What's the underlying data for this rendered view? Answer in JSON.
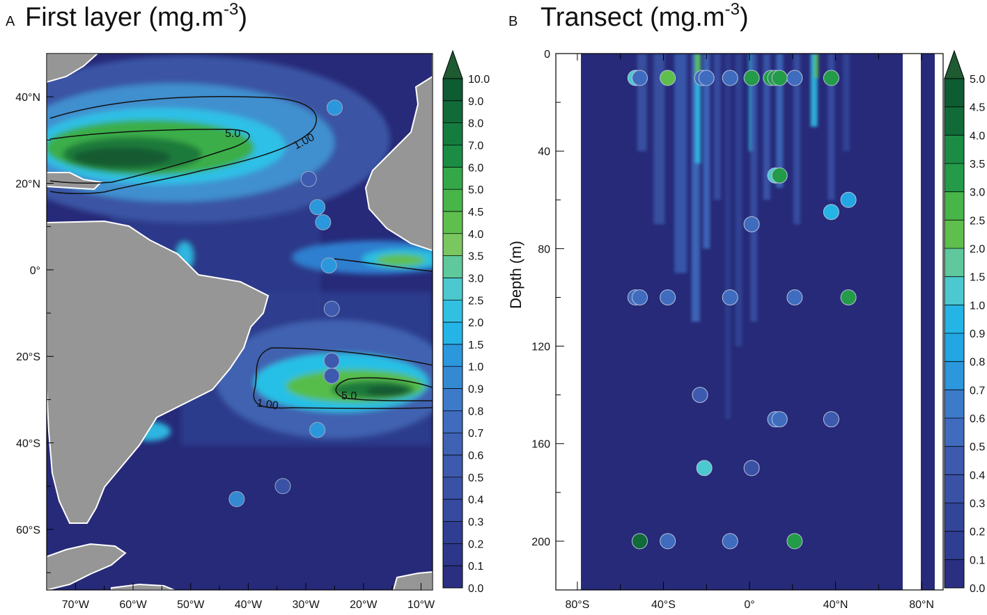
{
  "panel_a": {
    "letter": "A",
    "title": "First layer (mg.m",
    "title_sup": "-3",
    "title_close": ")",
    "lat_labels": [
      "40°N",
      "20°N",
      "0°",
      "20°S",
      "40°S",
      "60°S"
    ],
    "lon_labels": [
      "70°W",
      "60°W",
      "50°W",
      "40°W",
      "30°W",
      "20°W",
      "10°W"
    ],
    "contour_labels": [
      "5.0",
      "1.00",
      "5.0",
      "1.00"
    ],
    "colorbar_labels": [
      "10.0",
      "9.0",
      "8.0",
      "7.0",
      "6.0",
      "5.0",
      "4.5",
      "4.0",
      "3.5",
      "3.0",
      "2.5",
      "2.0",
      "1.5",
      "1.0",
      "0.9",
      "0.8",
      "0.7",
      "0.6",
      "0.5",
      "0.4",
      "0.3",
      "0.2",
      "0.1",
      "0.0"
    ],
    "stations": [
      {
        "lon": -25,
        "lat": 37.5,
        "value": 1.5
      },
      {
        "lon": -29.5,
        "lat": 21,
        "value": 0.6
      },
      {
        "lon": -28,
        "lat": 14.5,
        "value": 1.5
      },
      {
        "lon": -27,
        "lat": 11,
        "value": 1.5
      },
      {
        "lon": -26,
        "lat": 1,
        "value": 1.5
      },
      {
        "lon": -25.5,
        "lat": -9,
        "value": 0.6
      },
      {
        "lon": -25.5,
        "lat": -21,
        "value": 0.6
      },
      {
        "lon": -25.5,
        "lat": -24.5,
        "value": 0.6
      },
      {
        "lon": -28,
        "lat": -37,
        "value": 1.5
      },
      {
        "lon": -34,
        "lat": -50,
        "value": 0.5
      },
      {
        "lon": -42,
        "lat": -53,
        "value": 1.2
      }
    ]
  },
  "panel_b": {
    "letter": "B",
    "title": "Transect (mg.m",
    "title_sup": "-3",
    "title_close": ")",
    "ylabel": "Depth (m)",
    "depth_labels": [
      "0",
      "40",
      "80",
      "120",
      "160",
      "200"
    ],
    "lat_labels": [
      "80°S",
      "40°S",
      "0°",
      "40°N",
      "80°N"
    ],
    "colorbar_labels": [
      "5.0",
      "4.5",
      "4.0",
      "3.5",
      "3.0",
      "2.5",
      "2.0",
      "1.5",
      "1.0",
      "0.9",
      "0.8",
      "0.7",
      "0.6",
      "0.5",
      "0.4",
      "0.3",
      "0.2",
      "0.1",
      "0.0"
    ],
    "samples": [
      {
        "lat": -53,
        "depth": 10,
        "value": 1.5
      },
      {
        "lat": -51,
        "depth": 10,
        "value": 0.6
      },
      {
        "lat": -38,
        "depth": 10,
        "value": 2.5
      },
      {
        "lat": -22,
        "depth": 10,
        "value": 0.6
      },
      {
        "lat": -20,
        "depth": 10,
        "value": 0.6
      },
      {
        "lat": -9,
        "depth": 10,
        "value": 0.6
      },
      {
        "lat": 1,
        "depth": 10,
        "value": 3.5
      },
      {
        "lat": 10,
        "depth": 10,
        "value": 3.5
      },
      {
        "lat": 12,
        "depth": 10,
        "value": 3.5
      },
      {
        "lat": 14,
        "depth": 10,
        "value": 3.5
      },
      {
        "lat": 21,
        "depth": 10,
        "value": 0.6
      },
      {
        "lat": 38,
        "depth": 10,
        "value": 3.5
      },
      {
        "lat": 12,
        "depth": 50,
        "value": 1.5
      },
      {
        "lat": 14,
        "depth": 50,
        "value": 3.5
      },
      {
        "lat": 46,
        "depth": 60,
        "value": 0.9
      },
      {
        "lat": 38,
        "depth": 65,
        "value": 1.0
      },
      {
        "lat": 1,
        "depth": 70,
        "value": 0.6
      },
      {
        "lat": -53,
        "depth": 100,
        "value": 0.6
      },
      {
        "lat": -51,
        "depth": 100,
        "value": 0.6
      },
      {
        "lat": -38,
        "depth": 100,
        "value": 0.6
      },
      {
        "lat": -9,
        "depth": 100,
        "value": 0.6
      },
      {
        "lat": 21,
        "depth": 100,
        "value": 0.6
      },
      {
        "lat": 46,
        "depth": 100,
        "value": 3.5
      },
      {
        "lat": -23,
        "depth": 140,
        "value": 0.5
      },
      {
        "lat": 12,
        "depth": 150,
        "value": 0.6
      },
      {
        "lat": 14,
        "depth": 150,
        "value": 0.6
      },
      {
        "lat": 38,
        "depth": 150,
        "value": 0.5
      },
      {
        "lat": -21,
        "depth": 170,
        "value": 1.5
      },
      {
        "lat": 1,
        "depth": 170,
        "value": 0.4
      },
      {
        "lat": -51,
        "depth": 200,
        "value": 4.5
      },
      {
        "lat": -38,
        "depth": 200,
        "value": 0.6
      },
      {
        "lat": -9,
        "depth": 200,
        "value": 0.6
      },
      {
        "lat": 21,
        "depth": 200,
        "value": 3.5
      }
    ]
  },
  "colors": {
    "ocean_low": "#262a78",
    "land": "#969696",
    "coast": "#ffffff",
    "contour": "#111111"
  }
}
